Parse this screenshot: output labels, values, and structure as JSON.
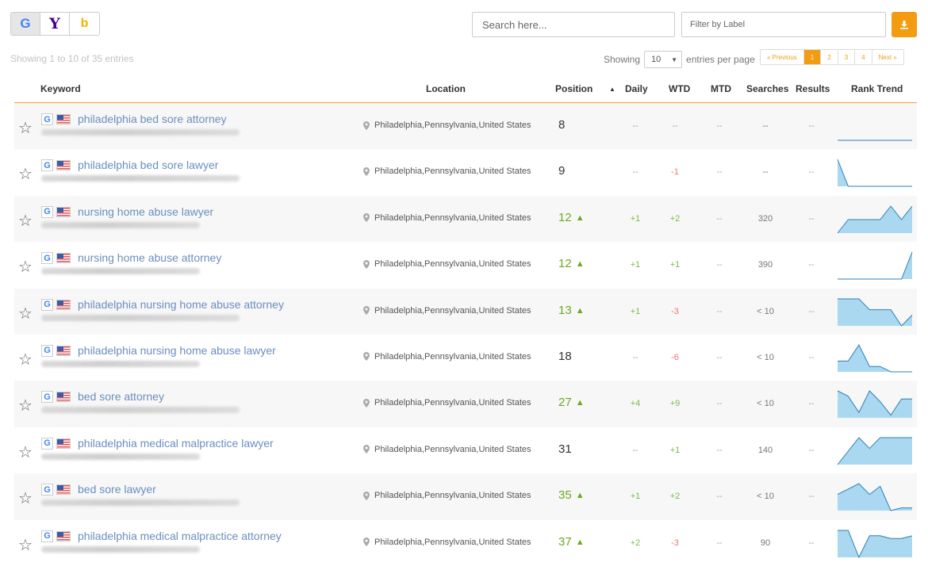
{
  "engines": [
    {
      "name": "google",
      "glyph": "G",
      "active": true
    },
    {
      "name": "yahoo",
      "glyph": "Y",
      "active": false
    },
    {
      "name": "bing",
      "glyph": "b",
      "active": false
    }
  ],
  "search": {
    "placeholder": "Search here..."
  },
  "filter": {
    "placeholder": "Filter by Label"
  },
  "info_text": "Showing 1 to 10 of 35 entries",
  "page_size": {
    "prefix": "Showing",
    "value": "10",
    "suffix": "entries per page"
  },
  "pagination": {
    "prev": "« Previous",
    "pages": [
      "1",
      "2",
      "3",
      "4"
    ],
    "current": "1",
    "next": "Next »"
  },
  "columns": {
    "keyword": "Keyword",
    "location": "Location",
    "position": "Position",
    "daily": "Daily",
    "wtd": "WTD",
    "mtd": "MTD",
    "searches": "Searches",
    "results": "Results",
    "rank_trend": "Rank Trend"
  },
  "colors": {
    "accent": "#f39c12",
    "keyword_link": "#6a8fbf",
    "up_green": "#6aab1f",
    "down_red": "#e57a6d",
    "trend_fill": "#a9d8f0",
    "trend_line": "#2f7fb8"
  },
  "rows": [
    {
      "keyword": "philadelphia bed sore attorney",
      "location": "Philadelphia,Pennsylvania,United States",
      "position": "8",
      "up": false,
      "daily": "--",
      "daily_c": "",
      "wtd": "--",
      "wtd_c": "",
      "mtd": "--",
      "searches": "--",
      "results": "--",
      "trend": [
        0,
        0,
        0,
        0,
        0,
        0,
        0,
        0
      ]
    },
    {
      "keyword": "philadelphia bed sore lawyer",
      "location": "Philadelphia,Pennsylvania,United States",
      "position": "9",
      "up": false,
      "daily": "--",
      "daily_c": "",
      "wtd": "-1",
      "wtd_c": "r",
      "mtd": "--",
      "searches": "--",
      "results": "--",
      "trend": [
        1,
        0,
        0,
        0,
        0,
        0,
        0,
        0
      ]
    },
    {
      "keyword": "nursing home abuse lawyer",
      "location": "Philadelphia,Pennsylvania,United States",
      "position": "12",
      "up": true,
      "daily": "+1",
      "daily_c": "g",
      "wtd": "+2",
      "wtd_c": "g",
      "mtd": "--",
      "searches": "320",
      "results": "--",
      "trend": [
        0,
        0.5,
        0.5,
        0.5,
        0.5,
        1,
        0.5,
        1
      ]
    },
    {
      "keyword": "nursing home abuse attorney",
      "location": "Philadelphia,Pennsylvania,United States",
      "position": "12",
      "up": true,
      "daily": "+1",
      "daily_c": "g",
      "wtd": "+1",
      "wtd_c": "g",
      "mtd": "--",
      "searches": "390",
      "results": "--",
      "trend": [
        0,
        0,
        0,
        0,
        0,
        0,
        0,
        1
      ]
    },
    {
      "keyword": "philadelphia nursing home abuse attorney",
      "location": "Philadelphia,Pennsylvania,United States",
      "position": "13",
      "up": true,
      "daily": "+1",
      "daily_c": "g",
      "wtd": "-3",
      "wtd_c": "r",
      "mtd": "--",
      "searches": "< 10",
      "results": "--",
      "trend": [
        1,
        1,
        1,
        0.6,
        0.6,
        0.6,
        0,
        0.4
      ]
    },
    {
      "keyword": "philadelphia nursing home abuse lawyer",
      "location": "Philadelphia,Pennsylvania,United States",
      "position": "18",
      "up": false,
      "daily": "--",
      "daily_c": "",
      "wtd": "-6",
      "wtd_c": "r",
      "mtd": "--",
      "searches": "< 10",
      "results": "--",
      "trend": [
        0.4,
        0.4,
        1,
        0.2,
        0.2,
        0,
        0,
        0
      ]
    },
    {
      "keyword": "bed sore attorney",
      "location": "Philadelphia,Pennsylvania,United States",
      "position": "27",
      "up": true,
      "daily": "+4",
      "daily_c": "g",
      "wtd": "+9",
      "wtd_c": "g",
      "mtd": "--",
      "searches": "< 10",
      "results": "--",
      "trend": [
        1,
        0.8,
        0.2,
        1,
        0.6,
        0.1,
        0.7,
        0.7
      ]
    },
    {
      "keyword": "philadelphia medical malpractice lawyer",
      "location": "Philadelphia,Pennsylvania,United States",
      "position": "31",
      "up": false,
      "daily": "--",
      "daily_c": "",
      "wtd": "+1",
      "wtd_c": "g",
      "mtd": "--",
      "searches": "140",
      "results": "--",
      "trend": [
        0,
        0.5,
        1,
        0.6,
        1,
        1,
        1,
        1
      ]
    },
    {
      "keyword": "bed sore lawyer",
      "location": "Philadelphia,Pennsylvania,United States",
      "position": "35",
      "up": true,
      "daily": "+1",
      "daily_c": "g",
      "wtd": "+2",
      "wtd_c": "g",
      "mtd": "--",
      "searches": "< 10",
      "results": "--",
      "trend": [
        0.6,
        0.8,
        1,
        0.6,
        0.9,
        0,
        0.1,
        0.1
      ]
    },
    {
      "keyword": "philadelphia medical malpractice attorney",
      "location": "Philadelphia,Pennsylvania,United States",
      "position": "37",
      "up": true,
      "daily": "+2",
      "daily_c": "g",
      "wtd": "-3",
      "wtd_c": "r",
      "mtd": "--",
      "searches": "90",
      "results": "--",
      "trend": [
        1,
        1,
        0,
        0.8,
        0.8,
        0.7,
        0.7,
        0.8
      ]
    }
  ]
}
